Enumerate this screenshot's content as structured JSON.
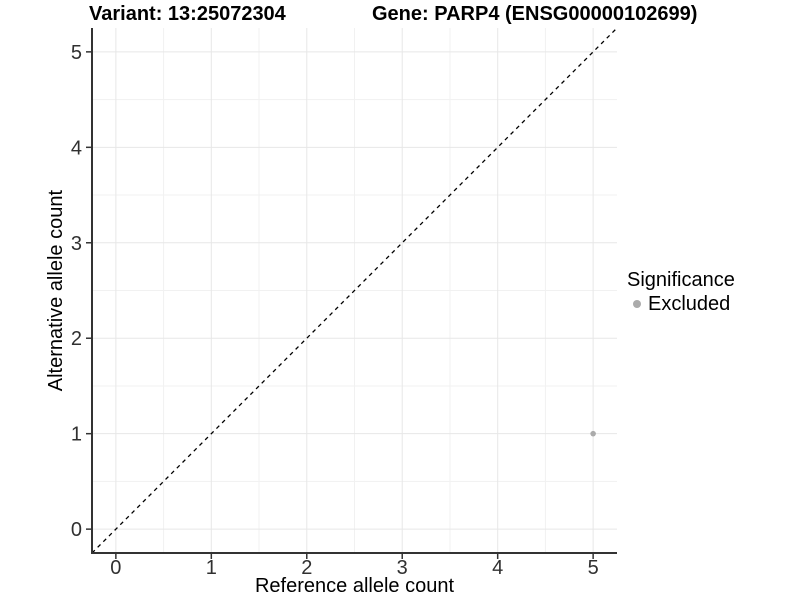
{
  "figure": {
    "title_left": "Variant: 13:25072304",
    "title_right": "Gene: PARP4 (ENSG00000102699)"
  },
  "chart_data": {
    "type": "scatter",
    "title": "Variant: 13:25072304 / Gene: PARP4 (ENSG00000102699)",
    "xlabel": "Reference allele count",
    "ylabel": "Alternative allele count",
    "xlim": [
      -0.25,
      5.25
    ],
    "ylim": [
      -0.25,
      5.25
    ],
    "x_ticks": [
      0,
      1,
      2,
      3,
      4,
      5
    ],
    "y_ticks": [
      0,
      1,
      2,
      3,
      4,
      5
    ],
    "x_minor_ticks": [
      0.5,
      1.5,
      2.5,
      3.5,
      4.5
    ],
    "y_minor_ticks": [
      0.5,
      1.5,
      2.5,
      3.5,
      4.5
    ],
    "grid": "major+minor",
    "reference_line": {
      "type": "identity",
      "style": "dashed",
      "color": "#000000"
    },
    "series": [
      {
        "name": "Excluded",
        "color": "#ababab",
        "points": [
          {
            "x": 5,
            "y": 1
          }
        ]
      }
    ],
    "legend": {
      "title": "Significance",
      "position": "right",
      "items": [
        {
          "label": "Excluded",
          "color": "#ababab",
          "marker": "circle"
        }
      ]
    }
  },
  "colors": {
    "background": "#ffffff",
    "grid_major": "#e7e7e7",
    "grid_minor": "#f1f1f1",
    "axis_line": "#333333",
    "tick_mark": "#333333",
    "tick_label": "#303030",
    "dashed_line": "#000000"
  }
}
